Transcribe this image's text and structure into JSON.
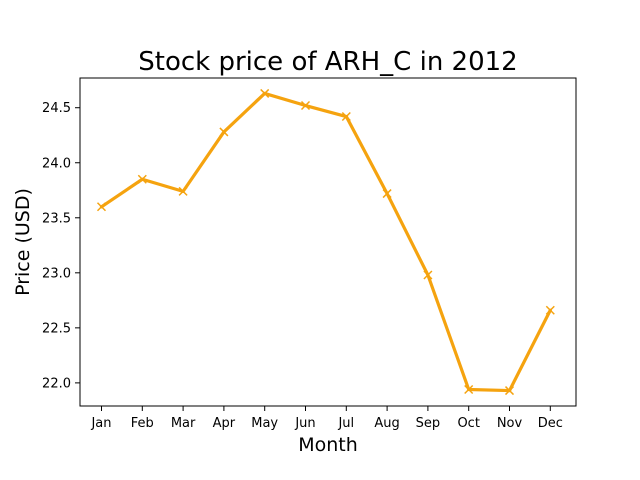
{
  "chart_data": {
    "type": "line",
    "title": "Stock price of ARH_C in 2012",
    "xlabel": "Month",
    "ylabel": "Price (USD)",
    "categories": [
      "Jan",
      "Feb",
      "Mar",
      "Apr",
      "May",
      "Jun",
      "Jul",
      "Aug",
      "Sep",
      "Oct",
      "Nov",
      "Dec"
    ],
    "series": [
      {
        "values": [
          23.6,
          23.85,
          23.74,
          24.28,
          24.63,
          24.52,
          24.42,
          23.72,
          22.98,
          21.94,
          21.93,
          22.66
        ],
        "color": "#f5a30f",
        "marker": "x"
      }
    ],
    "yticks": [
      "22.0",
      "22.5",
      "23.0",
      "23.5",
      "24.0",
      "24.5"
    ],
    "ylim": [
      21.79,
      24.77
    ],
    "grid": false,
    "legend": "none"
  }
}
